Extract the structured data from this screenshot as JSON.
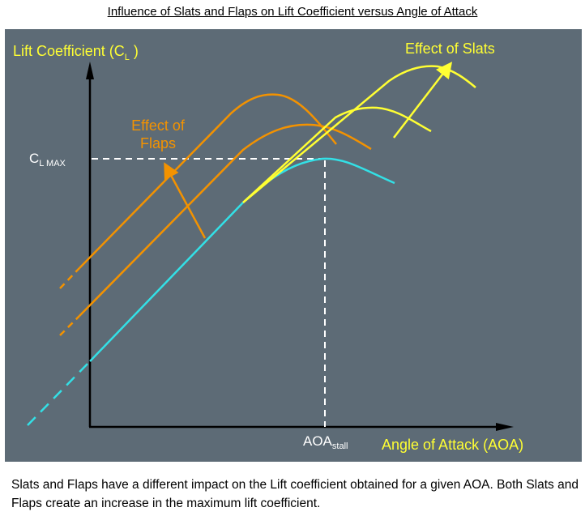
{
  "title": "Influence of Slats and Flaps on Lift Coefficient versus Angle of Attack",
  "diagram": {
    "y_axis_label": "Lift Coefficient (C",
    "y_axis_label_sub": "L",
    "y_axis_label_end": " )",
    "x_axis_label": "Angle of Attack (AOA)",
    "cl_max_label": "C",
    "cl_max_sub": "L MAX",
    "aoa_stall_label": "AOA",
    "aoa_stall_sub": "stall",
    "flaps_label_line1": "Effect of",
    "flaps_label_line2": "Flaps",
    "slats_label": "Effect of Slats",
    "colors": {
      "background": "#5d6b76",
      "basic": "#33e0e6",
      "flaps": "#f39200",
      "slats": "#ffff33",
      "axis": "#000000",
      "guide": "#ffffff"
    }
  },
  "caption": "Slats and Flaps have a different impact on the Lift coefficient obtained for a given AOA. Both Slats and Flaps create an increase in the maximum lift coefficient."
}
